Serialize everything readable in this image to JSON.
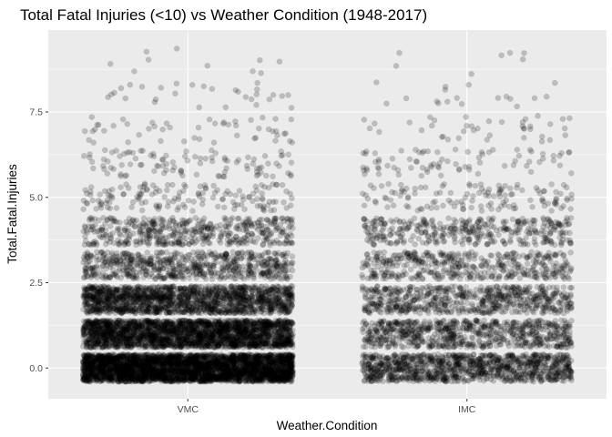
{
  "chart_data": {
    "type": "scatter",
    "jitter": true,
    "title": "Total Fatal Injuries (<10) vs Weather Condition (1948-2017)",
    "xlabel": "Weather.Condition",
    "ylabel": "Total.Fatal.Injuries",
    "categories": [
      "VMC",
      "IMC"
    ],
    "ylim": [
      -0.9,
      9.9
    ],
    "yticks": [
      0.0,
      2.5,
      5.0,
      7.5
    ],
    "ytick_labels": [
      "0.0",
      "2.5",
      "5.0",
      "7.5"
    ],
    "grid": true,
    "point_color": "#000000",
    "point_opacity": 0.2,
    "panel_background": "#ebebeb",
    "series": [
      {
        "category": "VMC",
        "counts_by_value": [
          {
            "y": 0,
            "count": 3500
          },
          {
            "y": 1,
            "count": 2400
          },
          {
            "y": 2,
            "count": 1600
          },
          {
            "y": 3,
            "count": 650
          },
          {
            "y": 4,
            "count": 480
          },
          {
            "y": 5,
            "count": 150
          },
          {
            "y": 6,
            "count": 100
          },
          {
            "y": 7,
            "count": 50
          },
          {
            "y": 8,
            "count": 30
          },
          {
            "y": 9,
            "count": 10
          }
        ]
      },
      {
        "category": "IMC",
        "counts_by_value": [
          {
            "y": 0,
            "count": 1100
          },
          {
            "y": 1,
            "count": 750
          },
          {
            "y": 2,
            "count": 650
          },
          {
            "y": 3,
            "count": 450
          },
          {
            "y": 4,
            "count": 380
          },
          {
            "y": 5,
            "count": 130
          },
          {
            "y": 6,
            "count": 80
          },
          {
            "y": 7,
            "count": 40
          },
          {
            "y": 8,
            "count": 18
          },
          {
            "y": 9,
            "count": 7
          }
        ]
      }
    ]
  }
}
